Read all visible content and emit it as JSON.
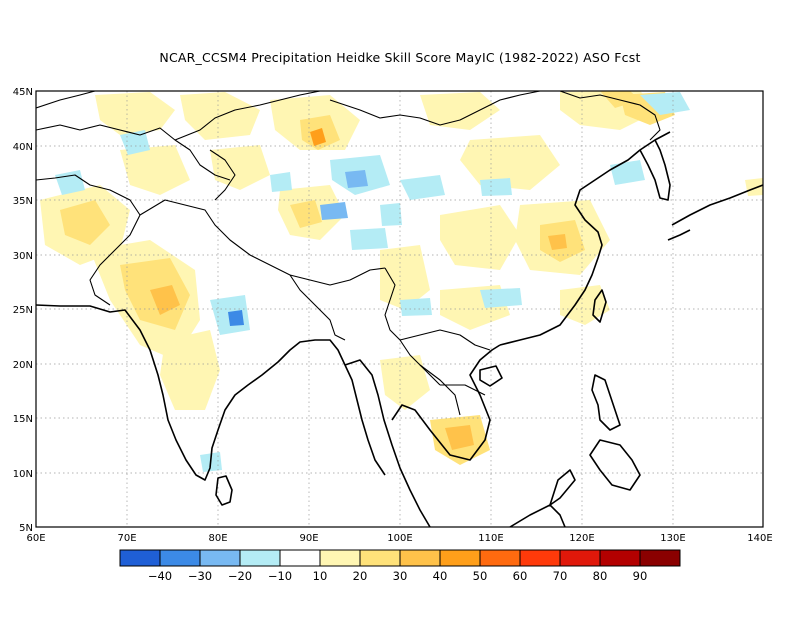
{
  "title": "NCAR_CCSM4  Precipitation Heidke Skill Score MayIC (1982-2022) ASO Fcst",
  "map": {
    "lon_range": [
      60,
      140
    ],
    "lat_range": [
      5,
      45
    ],
    "lon_ticks": [
      "60E",
      "70E",
      "80E",
      "90E",
      "100E",
      "110E",
      "120E",
      "130E",
      "140E"
    ],
    "lat_ticks": [
      "5N",
      "10N",
      "15N",
      "20N",
      "25N",
      "30N",
      "35N",
      "40N",
      "45N"
    ],
    "grid": "dotted"
  },
  "colorbar": {
    "labels": [
      "−40",
      "−30",
      "−20",
      "−10",
      "10",
      "20",
      "30",
      "40",
      "50",
      "60",
      "70",
      "80",
      "90"
    ],
    "colors": [
      "#1f5fd6",
      "#3c8ae6",
      "#78b9f2",
      "#b4ecf5",
      "#ffffff",
      "#fff6b3",
      "#ffe27a",
      "#ffc24a",
      "#ff9f1a",
      "#ff6a0f",
      "#ff3a0a",
      "#e0180a",
      "#b30000",
      "#8a0000"
    ]
  },
  "field_colors": {
    "pos10": "#fff6b3",
    "pos20": "#ffe27a",
    "pos30": "#ffc24a",
    "pos40": "#ff9f1a",
    "neg10": "#b4ecf5",
    "neg20": "#78b9f2",
    "neg30": "#3c8ae6"
  }
}
